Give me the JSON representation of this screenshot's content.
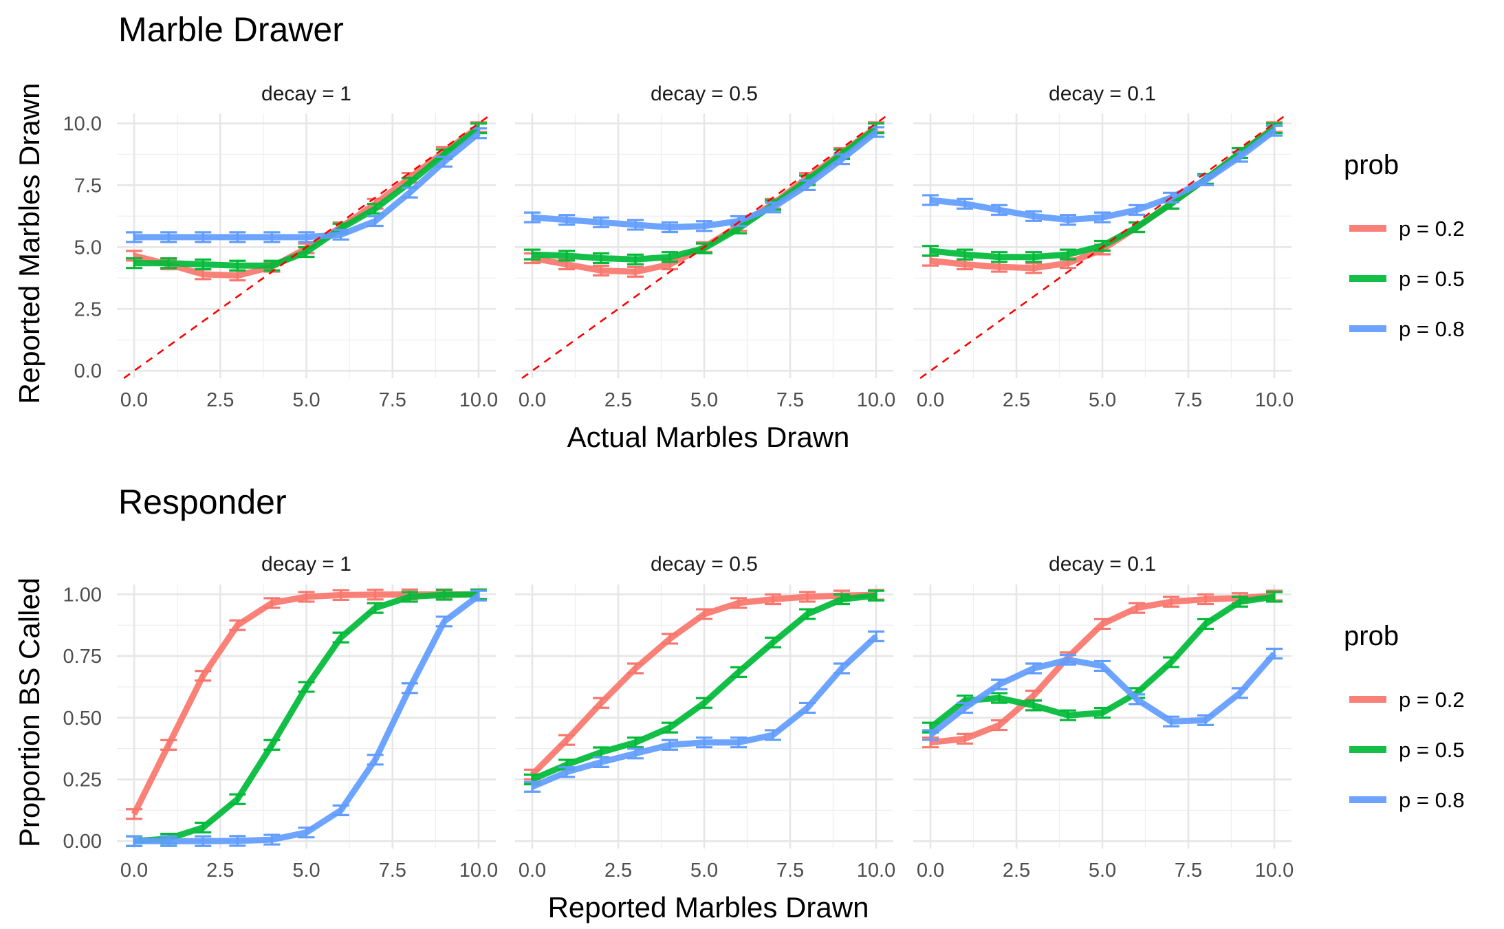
{
  "figure": {
    "legend_title": "prob",
    "legend_labels": [
      "p = 0.2",
      "p = 0.5",
      "p = 0.8"
    ],
    "colors": {
      "p = 0.2": "#F8766D",
      "p = 0.5": "#00BA38",
      "p = 0.8": "#619CFF",
      "reference_line": "#FF0000"
    }
  },
  "chart_data": [
    {
      "type": "line",
      "title": "Marble Drawer",
      "xlabel": "Actual Marbles Drawn",
      "ylabel": "Reported Marbles Drawn",
      "xlim": [
        -0.5,
        10.5
      ],
      "ylim": [
        -0.3,
        10.4
      ],
      "x_ticks": [
        "0.0",
        "2.5",
        "5.0",
        "7.5",
        "10.0"
      ],
      "y_ticks": [
        "0.0",
        "2.5",
        "5.0",
        "7.5",
        "10.0"
      ],
      "facets": [
        "decay = 1",
        "decay = 0.5",
        "decay = 0.1"
      ],
      "reference_line": "y = x (dashed)",
      "legend": "right",
      "grid": true,
      "x": [
        0,
        1,
        2,
        3,
        4,
        5,
        6,
        7,
        8,
        9,
        10
      ],
      "panels": [
        {
          "facet": "decay = 1",
          "series": [
            {
              "name": "p = 0.2",
              "values": [
                4.65,
                4.3,
                3.9,
                3.85,
                4.2,
                4.95,
                5.8,
                6.75,
                7.8,
                8.85,
                9.85
              ]
            },
            {
              "name": "p = 0.5",
              "values": [
                4.35,
                4.35,
                4.3,
                4.25,
                4.25,
                4.8,
                5.75,
                6.55,
                7.6,
                8.75,
                9.8
              ]
            },
            {
              "name": "p = 0.8",
              "values": [
                5.4,
                5.4,
                5.4,
                5.4,
                5.4,
                5.4,
                5.5,
                6.05,
                7.2,
                8.45,
                9.6
              ]
            }
          ]
        },
        {
          "facet": "decay = 0.5",
          "series": [
            {
              "name": "p = 0.2",
              "values": [
                4.55,
                4.3,
                4.05,
                4.0,
                4.3,
                5.0,
                5.85,
                6.75,
                7.8,
                8.8,
                9.85
              ]
            },
            {
              "name": "p = 0.5",
              "values": [
                4.7,
                4.65,
                4.55,
                4.5,
                4.6,
                4.95,
                5.75,
                6.7,
                7.7,
                8.75,
                9.8
              ]
            },
            {
              "name": "p = 0.8",
              "values": [
                6.2,
                6.1,
                6.0,
                5.9,
                5.8,
                5.85,
                6.05,
                6.6,
                7.5,
                8.55,
                9.65
              ]
            }
          ]
        },
        {
          "facet": "decay = 0.1",
          "series": [
            {
              "name": "p = 0.2",
              "values": [
                4.45,
                4.3,
                4.2,
                4.15,
                4.35,
                4.9,
                5.8,
                6.75,
                7.75,
                8.8,
                9.85
              ]
            },
            {
              "name": "p = 0.5",
              "values": [
                4.85,
                4.7,
                4.6,
                4.6,
                4.7,
                5.05,
                5.8,
                6.75,
                7.75,
                8.8,
                9.8
              ]
            },
            {
              "name": "p = 0.8",
              "values": [
                6.9,
                6.75,
                6.5,
                6.25,
                6.1,
                6.2,
                6.5,
                7.0,
                7.7,
                8.65,
                9.7
              ]
            }
          ]
        }
      ]
    },
    {
      "type": "line",
      "title": "Responder",
      "xlabel": "Reported Marbles Drawn",
      "ylabel": "Proportion BS Called",
      "xlim": [
        -0.5,
        10.5
      ],
      "ylim": [
        -0.03,
        1.04
      ],
      "x_ticks": [
        "0.0",
        "2.5",
        "5.0",
        "7.5",
        "10.0"
      ],
      "y_ticks": [
        "0.00",
        "0.25",
        "0.50",
        "0.75",
        "1.00"
      ],
      "facets": [
        "decay = 1",
        "decay = 0.5",
        "decay = 0.1"
      ],
      "error_bars": true,
      "legend": "right",
      "grid": true,
      "x": [
        0,
        1,
        2,
        3,
        4,
        5,
        6,
        7,
        8,
        9,
        10
      ],
      "panels": [
        {
          "facet": "decay = 1",
          "series": [
            {
              "name": "p = 0.2",
              "values": [
                0.11,
                0.39,
                0.67,
                0.875,
                0.965,
                0.99,
                0.997,
                0.999,
                1.0,
                1.0,
                1.0
              ]
            },
            {
              "name": "p = 0.5",
              "values": [
                0.0,
                0.01,
                0.055,
                0.17,
                0.39,
                0.625,
                0.825,
                0.945,
                0.99,
                0.998,
                1.0
              ]
            },
            {
              "name": "p = 0.8",
              "values": [
                0.0,
                0.0,
                0.0,
                0.001,
                0.006,
                0.035,
                0.125,
                0.33,
                0.62,
                0.89,
                0.995
              ]
            }
          ]
        },
        {
          "facet": "decay = 0.5",
          "series": [
            {
              "name": "p = 0.2",
              "values": [
                0.27,
                0.41,
                0.56,
                0.7,
                0.82,
                0.92,
                0.965,
                0.98,
                0.99,
                0.995,
                0.998
              ]
            },
            {
              "name": "p = 0.5",
              "values": [
                0.25,
                0.31,
                0.36,
                0.4,
                0.46,
                0.56,
                0.685,
                0.805,
                0.92,
                0.98,
                0.995
              ]
            },
            {
              "name": "p = 0.8",
              "values": [
                0.22,
                0.28,
                0.32,
                0.355,
                0.39,
                0.4,
                0.4,
                0.43,
                0.54,
                0.7,
                0.83
              ]
            }
          ]
        },
        {
          "facet": "decay = 0.1",
          "series": [
            {
              "name": "p = 0.2",
              "values": [
                0.4,
                0.415,
                0.47,
                0.59,
                0.745,
                0.88,
                0.945,
                0.97,
                0.98,
                0.985,
                0.995
              ]
            },
            {
              "name": "p = 0.5",
              "values": [
                0.46,
                0.57,
                0.58,
                0.55,
                0.51,
                0.52,
                0.6,
                0.725,
                0.88,
                0.97,
                0.99
              ]
            },
            {
              "name": "p = 0.8",
              "values": [
                0.43,
                0.54,
                0.635,
                0.7,
                0.735,
                0.71,
                0.575,
                0.485,
                0.49,
                0.6,
                0.76
              ]
            }
          ]
        }
      ]
    }
  ]
}
